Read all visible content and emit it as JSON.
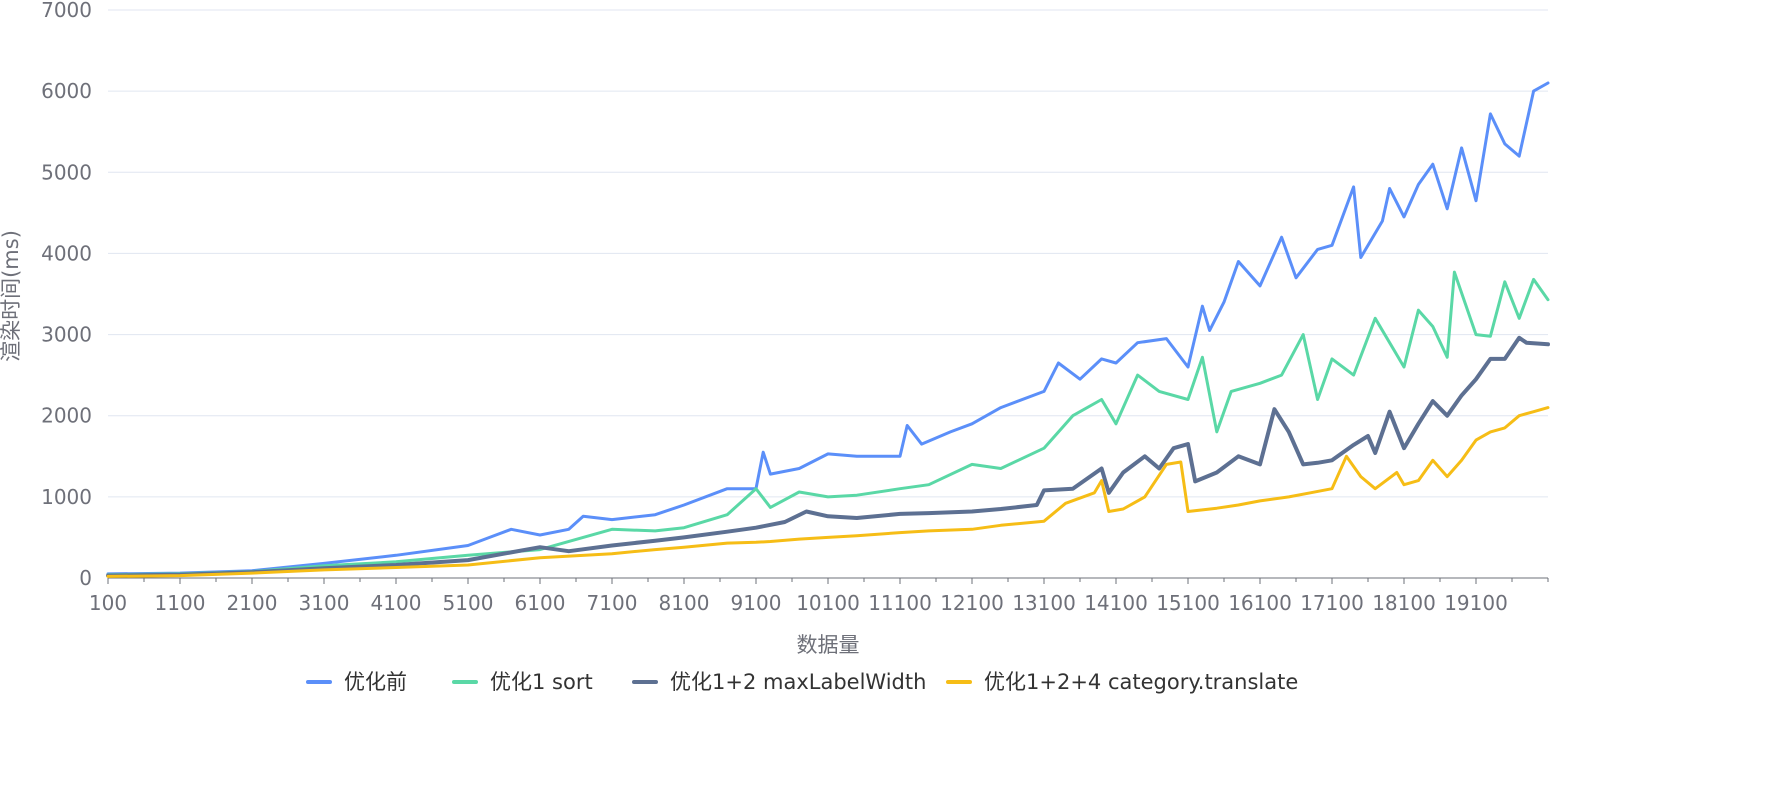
{
  "chart_data": {
    "type": "line",
    "title": "",
    "xlabel": "数据量",
    "ylabel": "渲染时间(ms)",
    "ylim": [
      0,
      7000
    ],
    "y_ticks": [
      "0",
      "1000",
      "2000",
      "3000",
      "4000",
      "5000",
      "6000",
      "7000"
    ],
    "x_ticks": [
      "100",
      "1100",
      "2100",
      "3100",
      "4100",
      "5100",
      "6100",
      "7100",
      "8100",
      "9100",
      "10100",
      "11100",
      "12100",
      "13100",
      "14100",
      "15100",
      "16100",
      "17100",
      "18100",
      "19100"
    ],
    "x_range": [
      100,
      20100
    ],
    "grid": "horizontal",
    "legend_position": "bottom",
    "series": [
      {
        "name": "优化前",
        "color": "#5b8ff9",
        "x": [
          100,
          1100,
          2100,
          3100,
          4100,
          5100,
          5400,
          5700,
          6100,
          6500,
          6700,
          7100,
          7700,
          8100,
          8700,
          9100,
          9200,
          9300,
          9700,
          10100,
          10500,
          11100,
          11200,
          11400,
          11800,
          12100,
          12500,
          13100,
          13300,
          13600,
          13900,
          14100,
          14400,
          14800,
          15100,
          15300,
          15400,
          15600,
          15800,
          16100,
          16400,
          16600,
          16900,
          17100,
          17400,
          17500,
          17800,
          17900,
          18100,
          18300,
          18500,
          18700,
          18900,
          19100,
          19300,
          19500,
          19700,
          19900,
          20100
        ],
        "values": [
          50,
          60,
          90,
          180,
          280,
          400,
          500,
          600,
          530,
          600,
          760,
          720,
          780,
          900,
          1100,
          1100,
          1550,
          1280,
          1350,
          1530,
          1500,
          1500,
          1880,
          1650,
          1800,
          1900,
          2100,
          2300,
          2650,
          2450,
          2700,
          2650,
          2900,
          2950,
          2600,
          3350,
          3050,
          3400,
          3900,
          3600,
          4200,
          3700,
          4050,
          4100,
          4820,
          3950,
          4400,
          4800,
          4450,
          4850,
          5100,
          4550,
          5300,
          4650,
          5720,
          5350,
          5200,
          6000,
          6100
        ]
      },
      {
        "name": "优化1 sort",
        "color": "#5ad8a6",
        "x": [
          100,
          1100,
          2100,
          3100,
          4100,
          5100,
          6100,
          7100,
          7700,
          8100,
          8700,
          9100,
          9300,
          9700,
          10100,
          10500,
          11100,
          11500,
          12100,
          12500,
          13100,
          13500,
          13900,
          14100,
          14400,
          14700,
          15100,
          15300,
          15500,
          15700,
          16100,
          16400,
          16700,
          16900,
          17100,
          17400,
          17700,
          18100,
          18300,
          18500,
          18700,
          18800,
          19100,
          19300,
          19500,
          19700,
          19900,
          20100
        ],
        "values": [
          40,
          50,
          80,
          150,
          200,
          280,
          350,
          600,
          580,
          620,
          780,
          1100,
          870,
          1060,
          1000,
          1020,
          1100,
          1150,
          1400,
          1350,
          1600,
          2000,
          2200,
          1900,
          2500,
          2300,
          2200,
          2720,
          1800,
          2300,
          2400,
          2500,
          3000,
          2200,
          2700,
          2500,
          3200,
          2600,
          3300,
          3100,
          2720,
          3770,
          3000,
          2980,
          3650,
          3200,
          3680,
          3430
        ]
      },
      {
        "name": "优化1+2 maxLabelWidth",
        "color": "#5d7092",
        "x": [
          100,
          1100,
          2100,
          3100,
          4100,
          5100,
          6100,
          6500,
          7100,
          7700,
          8100,
          8700,
          9100,
          9500,
          9800,
          10100,
          10500,
          11100,
          11500,
          12100,
          12500,
          13000,
          13100,
          13500,
          13900,
          14000,
          14200,
          14500,
          14700,
          14900,
          15100,
          15200,
          15500,
          15800,
          16100,
          16300,
          16500,
          16700,
          16900,
          17100,
          17400,
          17600,
          17700,
          17900,
          18100,
          18300,
          18500,
          18700,
          18900,
          19100,
          19300,
          19500,
          19700,
          19800,
          20100
        ],
        "values": [
          30,
          40,
          70,
          120,
          160,
          220,
          380,
          330,
          400,
          460,
          500,
          570,
          620,
          690,
          820,
          760,
          740,
          790,
          800,
          820,
          850,
          900,
          1080,
          1100,
          1350,
          1050,
          1300,
          1500,
          1350,
          1600,
          1650,
          1190,
          1300,
          1500,
          1400,
          2080,
          1800,
          1400,
          1420,
          1450,
          1640,
          1750,
          1540,
          2050,
          1600,
          1900,
          2180,
          2000,
          2250,
          2450,
          2700,
          2700,
          2960,
          2900,
          2880
        ]
      },
      {
        "name": "优化1+2+4 category.translate",
        "color": "#f6bd16",
        "x": [
          100,
          1100,
          2100,
          3100,
          4100,
          5100,
          6100,
          7100,
          7700,
          8100,
          8700,
          9100,
          9300,
          9700,
          10100,
          10500,
          11100,
          11500,
          12100,
          12500,
          13100,
          13400,
          13800,
          13900,
          14000,
          14200,
          14500,
          14800,
          15000,
          15100,
          15500,
          15800,
          16100,
          16500,
          16800,
          17100,
          17300,
          17500,
          17700,
          18000,
          18100,
          18300,
          18500,
          18700,
          18900,
          19100,
          19300,
          19500,
          19700,
          19900,
          20100
        ],
        "values": [
          20,
          30,
          60,
          100,
          130,
          160,
          250,
          300,
          350,
          380,
          430,
          440,
          450,
          480,
          500,
          520,
          560,
          580,
          600,
          650,
          700,
          920,
          1050,
          1200,
          820,
          850,
          1000,
          1400,
          1430,
          820,
          860,
          900,
          950,
          1000,
          1050,
          1100,
          1500,
          1250,
          1100,
          1300,
          1150,
          1200,
          1450,
          1250,
          1450,
          1700,
          1800,
          1850,
          2000,
          2050,
          2100
        ]
      }
    ]
  }
}
